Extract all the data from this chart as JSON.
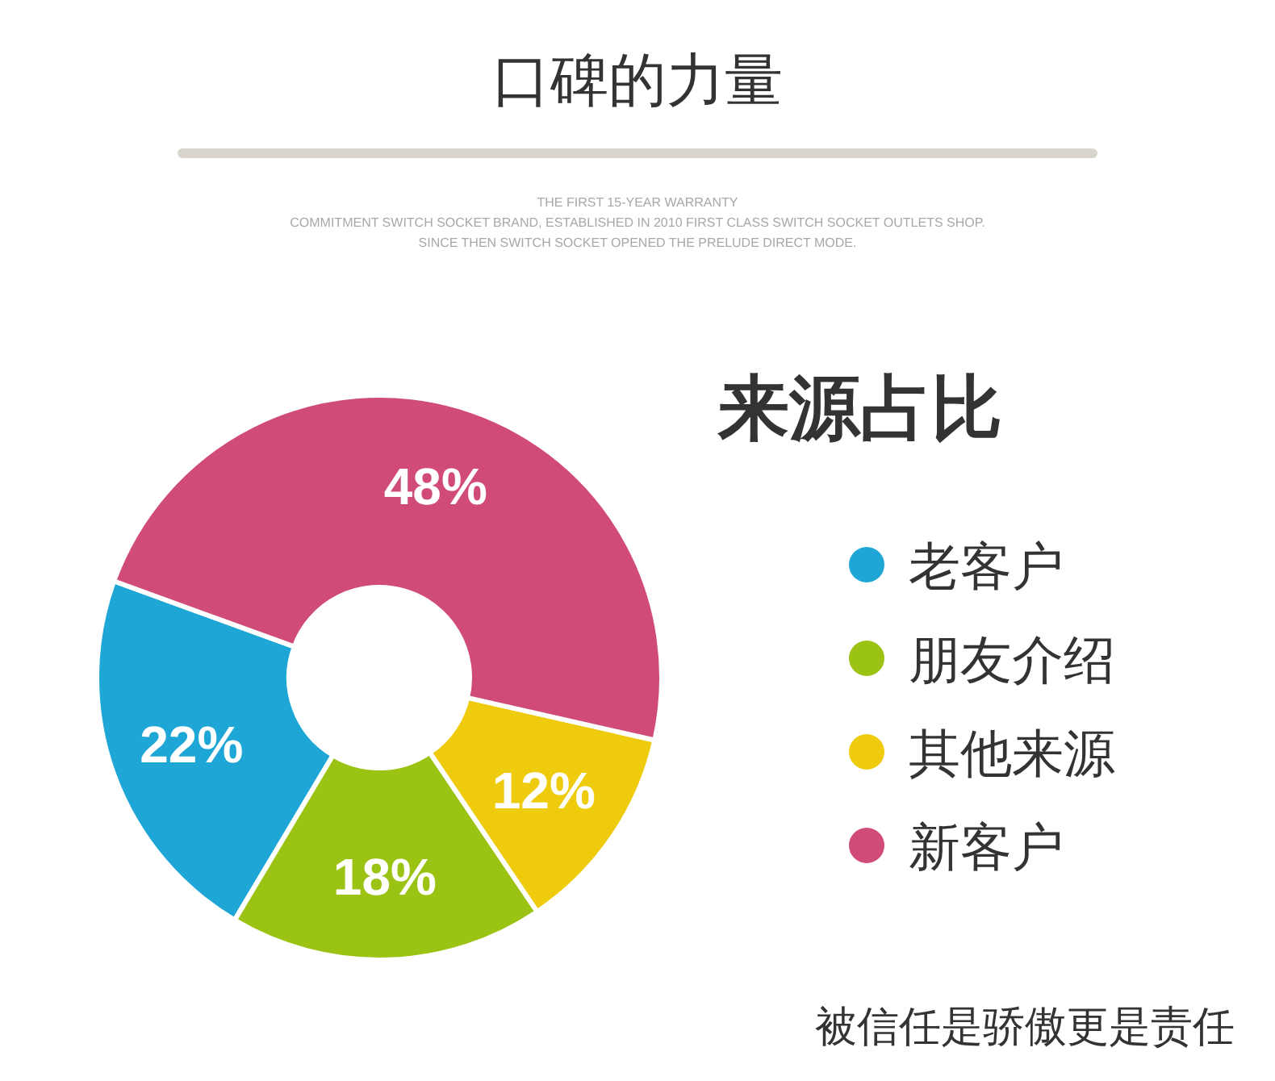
{
  "chart_data": {
    "type": "donut",
    "title": "口碑的力量",
    "legend_title": "来源占比",
    "categories": [
      "老客户",
      "朋友介绍",
      "其他来源",
      "新客户"
    ],
    "values": [
      22,
      18,
      12,
      48
    ],
    "colors": [
      "#1ea6d6",
      "#9bc313",
      "#efcb0e",
      "#d04b75"
    ],
    "value_labels": [
      "22%",
      "18%",
      "12%",
      "48%"
    ],
    "legend": "right",
    "annotations": [
      "THE FIRST 15-YEAR WARRANTY",
      "COMMITMENT SWITCH SOCKET BRAND, ESTABLISHED IN 2010 FIRST CLASS SWITCH SOCKET OUTLETS SHOP.",
      "SINCE THEN SWITCH SOCKET OPENED THE PRELUDE DIRECT MODE.",
      "被信任是骄傲更是责任"
    ]
  }
}
